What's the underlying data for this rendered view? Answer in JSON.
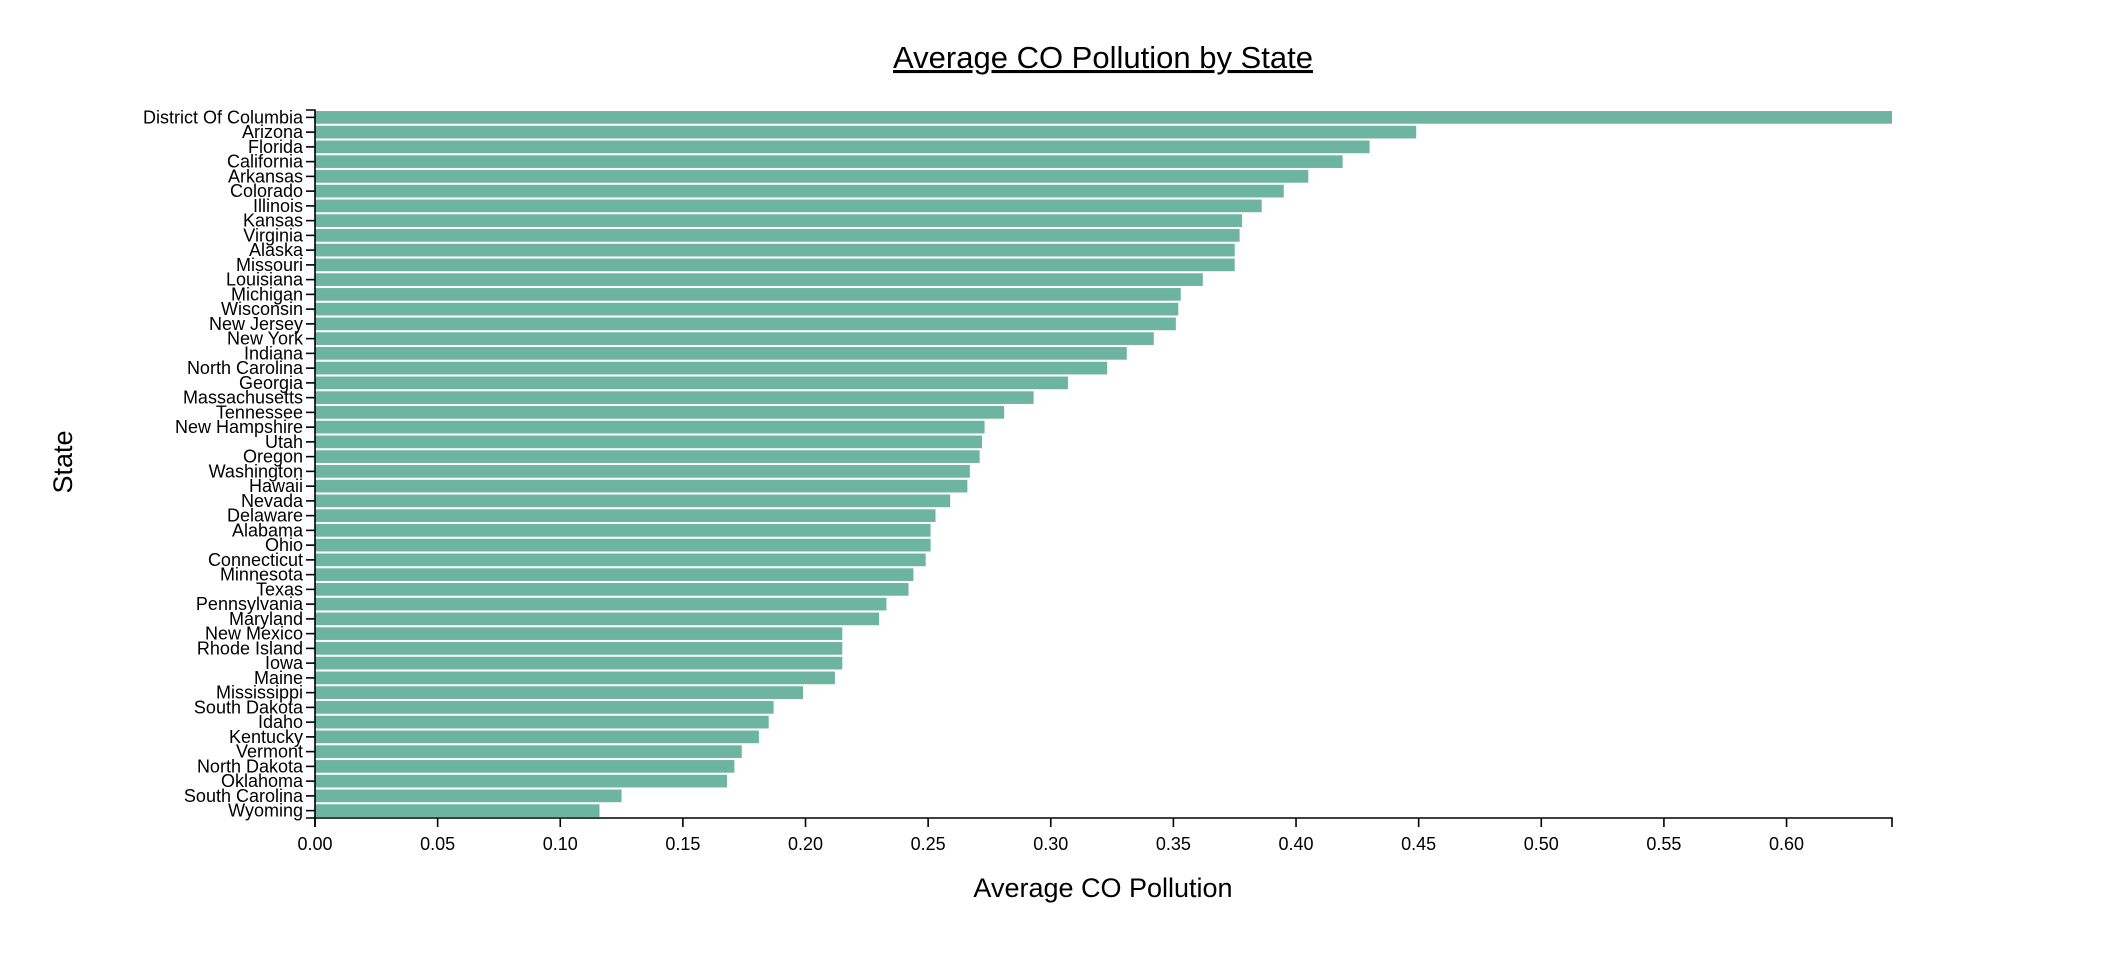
{
  "chart_data": {
    "type": "bar",
    "orientation": "horizontal",
    "title": "Average CO Pollution by State",
    "xlabel": "Average CO Pollution",
    "ylabel": "State",
    "xlim": [
      0,
      0.643
    ],
    "xticks": [
      "0.00",
      "0.05",
      "0.10",
      "0.15",
      "0.20",
      "0.25",
      "0.30",
      "0.35",
      "0.40",
      "0.45",
      "0.50",
      "0.55",
      "0.60"
    ],
    "grid": false,
    "bar_color": "#6db5a0",
    "categories": [
      "District Of Columbia",
      "Arizona",
      "Florida",
      "California",
      "Arkansas",
      "Colorado",
      "Illinois",
      "Kansas",
      "Virginia",
      "Alaska",
      "Missouri",
      "Louisiana",
      "Michigan",
      "Wisconsin",
      "New Jersey",
      "New York",
      "Indiana",
      "North Carolina",
      "Georgia",
      "Massachusetts",
      "Tennessee",
      "New Hampshire",
      "Utah",
      "Oregon",
      "Washington",
      "Hawaii",
      "Nevada",
      "Delaware",
      "Alabama",
      "Ohio",
      "Connecticut",
      "Minnesota",
      "Texas",
      "Pennsylvania",
      "Maryland",
      "New Mexico",
      "Rhode Island",
      "Iowa",
      "Maine",
      "Mississippi",
      "South Dakota",
      "Idaho",
      "Kentucky",
      "Vermont",
      "North Dakota",
      "Oklahoma",
      "South Carolina",
      "Wyoming"
    ],
    "values": [
      0.643,
      0.449,
      0.43,
      0.419,
      0.405,
      0.395,
      0.386,
      0.378,
      0.377,
      0.375,
      0.375,
      0.362,
      0.353,
      0.352,
      0.351,
      0.342,
      0.331,
      0.323,
      0.307,
      0.293,
      0.281,
      0.273,
      0.272,
      0.271,
      0.267,
      0.266,
      0.259,
      0.253,
      0.251,
      0.251,
      0.249,
      0.244,
      0.242,
      0.233,
      0.23,
      0.215,
      0.215,
      0.215,
      0.212,
      0.199,
      0.187,
      0.185,
      0.181,
      0.174,
      0.171,
      0.168,
      0.125,
      0.116
    ]
  }
}
